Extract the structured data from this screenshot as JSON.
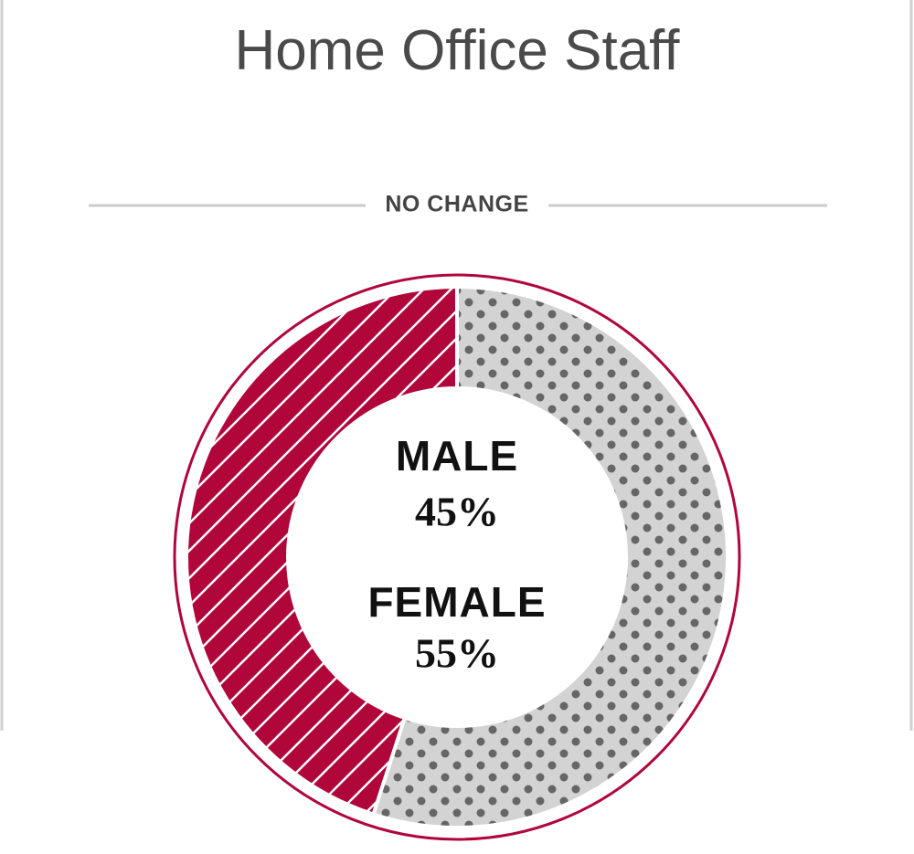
{
  "chart_data": {
    "type": "donut",
    "title": "Home Office Staff",
    "subtitle": "NO CHANGE",
    "categories": [
      "MALE",
      "FEMALE"
    ],
    "values": [
      45,
      55
    ],
    "value_labels": [
      "45%",
      "55%"
    ],
    "colors": [
      "#b0063a",
      "#d3d3d3"
    ]
  }
}
